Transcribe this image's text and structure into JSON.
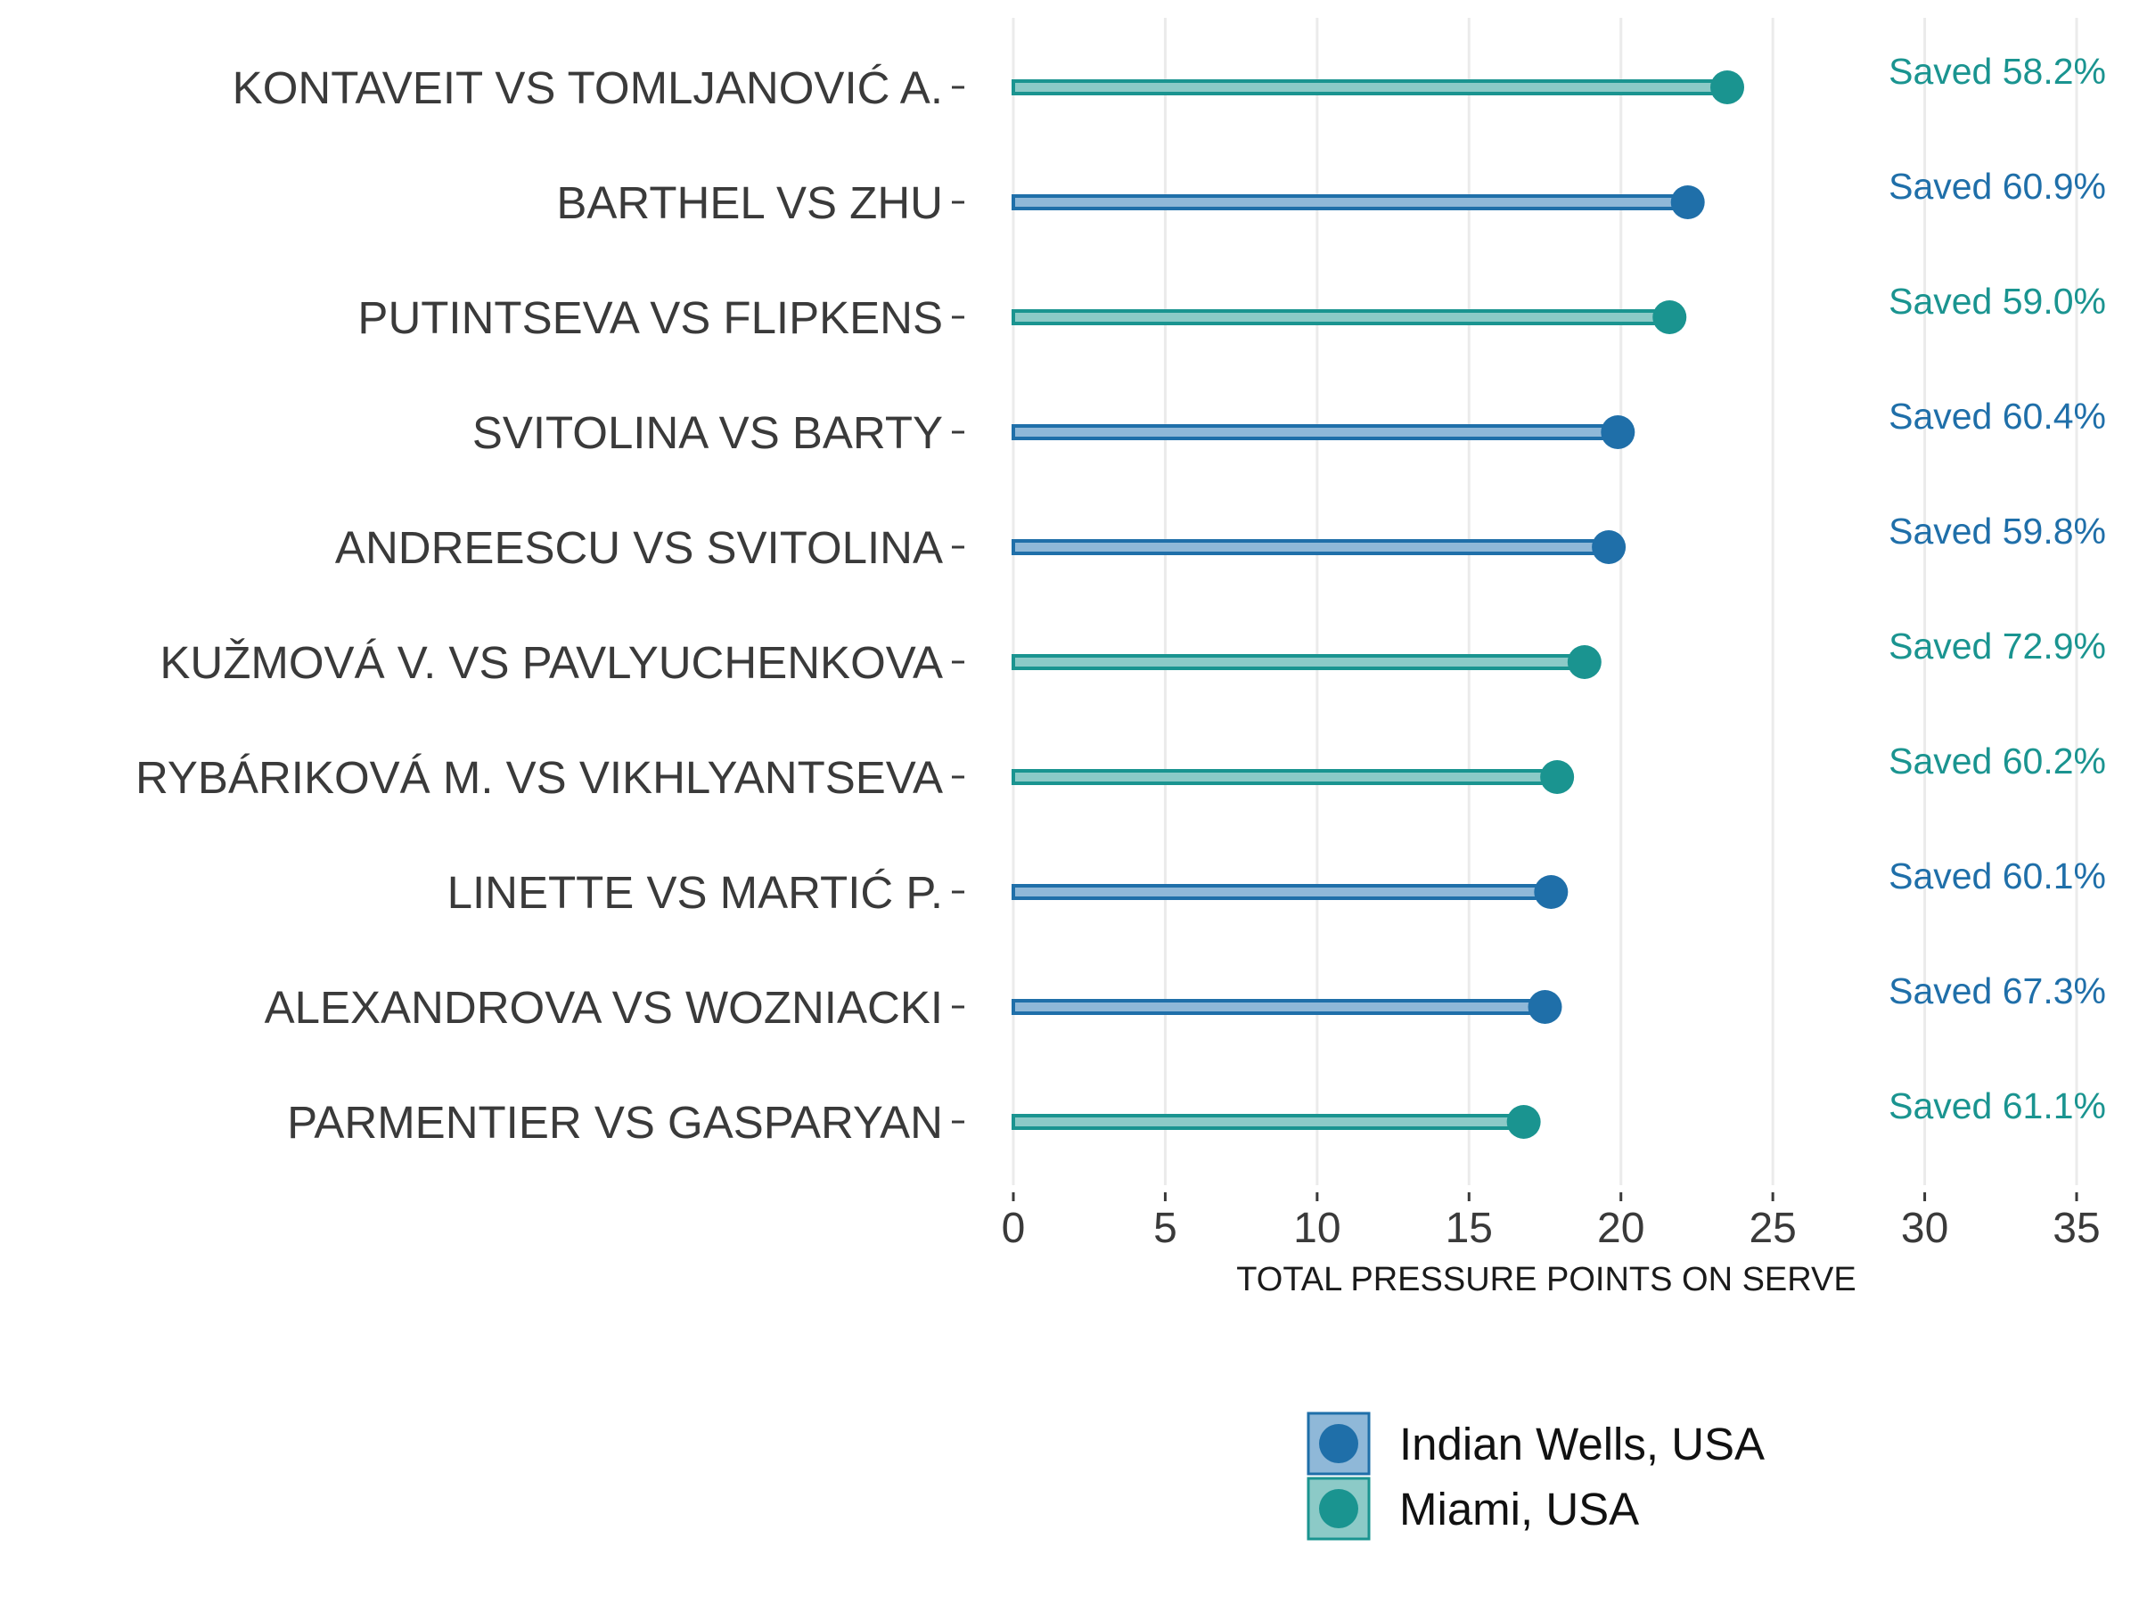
{
  "chart_data": {
    "type": "bar",
    "xlabel": "TOTAL PRESSURE POINTS ON SERVE",
    "xlim": [
      0,
      35
    ],
    "xticks": [
      0,
      5,
      10,
      15,
      20,
      25,
      30,
      35
    ],
    "xtick_labels": [
      "0",
      "5",
      "10",
      "15",
      "20",
      "25",
      "30",
      "35"
    ],
    "grid": true,
    "legend_position": "bottom",
    "colors": {
      "Indian Wells, USA": {
        "point": "#1f6fa9",
        "bar": "#8fb8d8"
      },
      "Miami, USA": {
        "point": "#1a9490",
        "bar": "#8ccac7"
      }
    },
    "legend": [
      "Indian Wells, USA",
      "Miami, USA"
    ],
    "categories": [
      "KONTAVEIT VS TOMLJANOVIĆ A.",
      "BARTHEL VS ZHU",
      "PUTINTSEVA VS FLIPKENS",
      "SVITOLINA VS BARTY",
      "ANDREESCU VS SVITOLINA",
      "KUŽMOVÁ V. VS PAVLYUCHENKOVA",
      "RYBÁRIKOVÁ M. VS VIKHLYANTSEVA",
      "LINETTE VS MARTIĆ P.",
      "ALEXANDROVA VS WOZNIACKI",
      "PARMENTIER VS GASPARYAN"
    ],
    "values": [
      23.5,
      22.2,
      21.6,
      19.9,
      19.6,
      18.8,
      17.9,
      17.7,
      17.5,
      16.8
    ],
    "tournament": [
      "Miami, USA",
      "Indian Wells, USA",
      "Miami, USA",
      "Indian Wells, USA",
      "Indian Wells, USA",
      "Miami, USA",
      "Miami, USA",
      "Indian Wells, USA",
      "Indian Wells, USA",
      "Miami, USA"
    ],
    "annotations": [
      "Saved 58.2%",
      "Saved 60.9%",
      "Saved 59.0%",
      "Saved 60.4%",
      "Saved 59.8%",
      "Saved 72.9%",
      "Saved 60.2%",
      "Saved 60.1%",
      "Saved 67.3%",
      "Saved 61.1%"
    ]
  }
}
